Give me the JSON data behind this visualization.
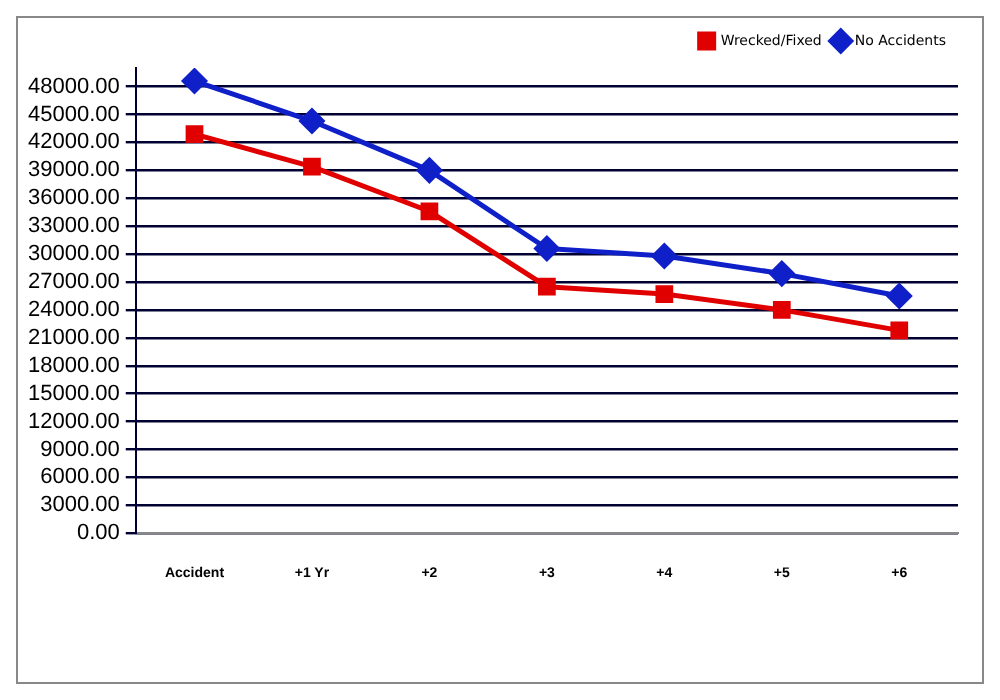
{
  "chart_data": {
    "type": "line",
    "categories": [
      "Accident",
      "+1 Yr",
      "+2",
      "+3",
      "+4",
      "+5",
      "+6"
    ],
    "series": [
      {
        "name": "Wrecked/Fixed",
        "color": "#e00000",
        "marker": "square",
        "values": [
          42900,
          39400,
          34600,
          26500,
          25700,
          24000,
          21800
        ]
      },
      {
        "name": "No Accidents",
        "color": "#1020c8",
        "marker": "diamond",
        "values": [
          48600,
          44300,
          39000,
          30600,
          29800,
          27900,
          25500
        ]
      }
    ],
    "ylim": [
      0,
      50000
    ],
    "yticks": [
      {
        "value": 0,
        "label": "0.00"
      },
      {
        "value": 3000,
        "label": "3000.00"
      },
      {
        "value": 6000,
        "label": "6000.00"
      },
      {
        "value": 9000,
        "label": "9000.00"
      },
      {
        "value": 12000,
        "label": "12000.00"
      },
      {
        "value": 15000,
        "label": "15000.00"
      },
      {
        "value": 18000,
        "label": "18000.00"
      },
      {
        "value": 21000,
        "label": "21000.00"
      },
      {
        "value": 24000,
        "label": "24000.00"
      },
      {
        "value": 27000,
        "label": "27000.00"
      },
      {
        "value": 30000,
        "label": "30000.00"
      },
      {
        "value": 33000,
        "label": "33000.00"
      },
      {
        "value": 36000,
        "label": "36000.00"
      },
      {
        "value": 39000,
        "label": "39000.00"
      },
      {
        "value": 42000,
        "label": "42000.00"
      },
      {
        "value": 45000,
        "label": "45000.00"
      },
      {
        "value": 48000,
        "label": "48000.00"
      }
    ],
    "grid": "y",
    "legend": "top right"
  }
}
